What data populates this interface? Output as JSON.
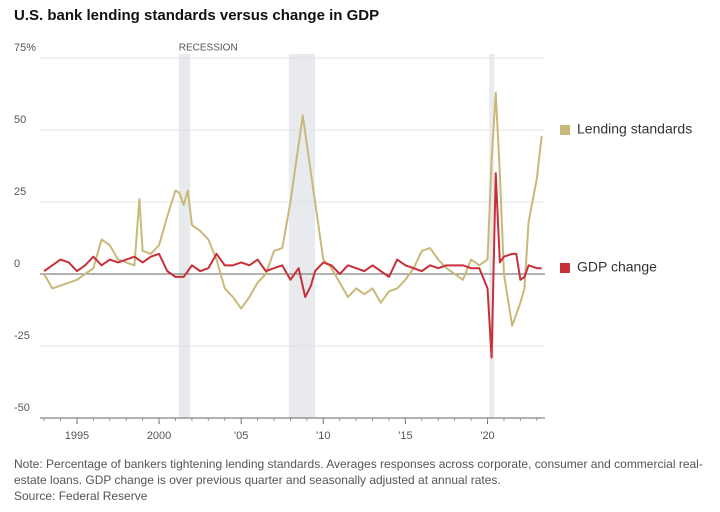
{
  "chart_data": {
    "type": "line",
    "title": "U.S. bank lending standards versus change in GDP",
    "recession_label": "RECESSION",
    "recessions": [
      [
        2001.2,
        2001.9
      ],
      [
        2007.9,
        2009.5
      ],
      [
        2020.1,
        2020.4
      ]
    ],
    "note": "Note: Percentage of bankers tightening lending standards. Averages responses across corporate, consumer and commercial real-estate loans. GDP change is over previous quarter and seasonally adjusted at annual rates.",
    "source": "Source: Federal Reserve",
    "xlim": [
      1992.75,
      2023.5
    ],
    "xticks": [
      1995,
      2000,
      {
        "value": 2005,
        "label": "'05"
      },
      {
        "value": 2010,
        "label": "'10"
      },
      {
        "value": 2015,
        "label": "'15"
      },
      {
        "value": 2020,
        "label": "'20"
      }
    ],
    "ylim": [
      -50,
      75
    ],
    "yticks": [
      {
        "value": 75,
        "label": "75%"
      },
      50,
      25,
      0,
      -25,
      -50
    ],
    "grid": true,
    "series": [
      {
        "name": "Lending standards",
        "color": "#c8b97a",
        "x": [
          1993,
          1993.5,
          1994,
          1994.5,
          1995,
          1995.5,
          1996,
          1996.5,
          1997,
          1997.5,
          1998,
          1998.5,
          1998.8,
          1999,
          1999.5,
          2000,
          2000.5,
          2001,
          2001.25,
          2001.5,
          2001.75,
          2002,
          2002.5,
          2003,
          2003.5,
          2004,
          2004.5,
          2005,
          2005.5,
          2006,
          2006.5,
          2007,
          2007.5,
          2008,
          2008.5,
          2008.75,
          2009,
          2009.5,
          2010,
          2010.5,
          2011,
          2011.5,
          2012,
          2012.5,
          2013,
          2013.5,
          2014,
          2014.5,
          2015,
          2015.5,
          2016,
          2016.5,
          2017,
          2017.5,
          2018,
          2018.5,
          2019,
          2019.5,
          2020,
          2020.25,
          2020.5,
          2020.75,
          2021,
          2021.5,
          2022,
          2022.25,
          2022.5,
          2023,
          2023.3
        ],
        "values": [
          0,
          -5,
          -4,
          -3,
          -2,
          0,
          2,
          12,
          10,
          5,
          4,
          3,
          26,
          8,
          7,
          10,
          20,
          29,
          28,
          24,
          29,
          17,
          15,
          12,
          5,
          -5,
          -8,
          -12,
          -8,
          -3,
          0,
          8,
          9,
          25,
          45,
          55,
          45,
          25,
          5,
          2,
          -3,
          -8,
          -5,
          -7,
          -5,
          -10,
          -6,
          -5,
          -2,
          2,
          8,
          9,
          5,
          2,
          0,
          -2,
          5,
          3,
          5,
          40,
          63,
          35,
          0,
          -18,
          -10,
          -5,
          18,
          33,
          48
        ]
      },
      {
        "name": "GDP change",
        "color": "#c8303a",
        "x": [
          1993,
          1993.5,
          1994,
          1994.5,
          1995,
          1995.5,
          1996,
          1996.5,
          1997,
          1997.5,
          1998,
          1998.5,
          1999,
          1999.5,
          2000,
          2000.5,
          2001,
          2001.5,
          2002,
          2002.5,
          2003,
          2003.5,
          2004,
          2004.5,
          2005,
          2005.5,
          2006,
          2006.5,
          2007,
          2007.5,
          2008,
          2008.5,
          2008.9,
          2009.25,
          2009.5,
          2010,
          2010.5,
          2011,
          2011.5,
          2012,
          2012.5,
          2013,
          2013.5,
          2014,
          2014.5,
          2015,
          2015.5,
          2016,
          2016.5,
          2017,
          2017.5,
          2018,
          2018.5,
          2019,
          2019.5,
          2020,
          2020.25,
          2020.5,
          2020.75,
          2021,
          2021.5,
          2021.75,
          2022,
          2022.25,
          2022.5,
          2023,
          2023.3
        ],
        "values": [
          1,
          3,
          5,
          4,
          1,
          3,
          6,
          3,
          5,
          4,
          5,
          6,
          4,
          6,
          7,
          1,
          -1,
          -1,
          3,
          1,
          2,
          7,
          3,
          3,
          4,
          3,
          5,
          1,
          2,
          3,
          -2,
          2,
          -8,
          -4,
          1,
          4,
          3,
          0,
          3,
          2,
          1,
          3,
          1,
          -1,
          5,
          3,
          2,
          1,
          3,
          2,
          3,
          3,
          3,
          2,
          2,
          -5,
          -29,
          35,
          4,
          6,
          7,
          7,
          -2,
          -1,
          3,
          2,
          2
        ]
      }
    ]
  }
}
